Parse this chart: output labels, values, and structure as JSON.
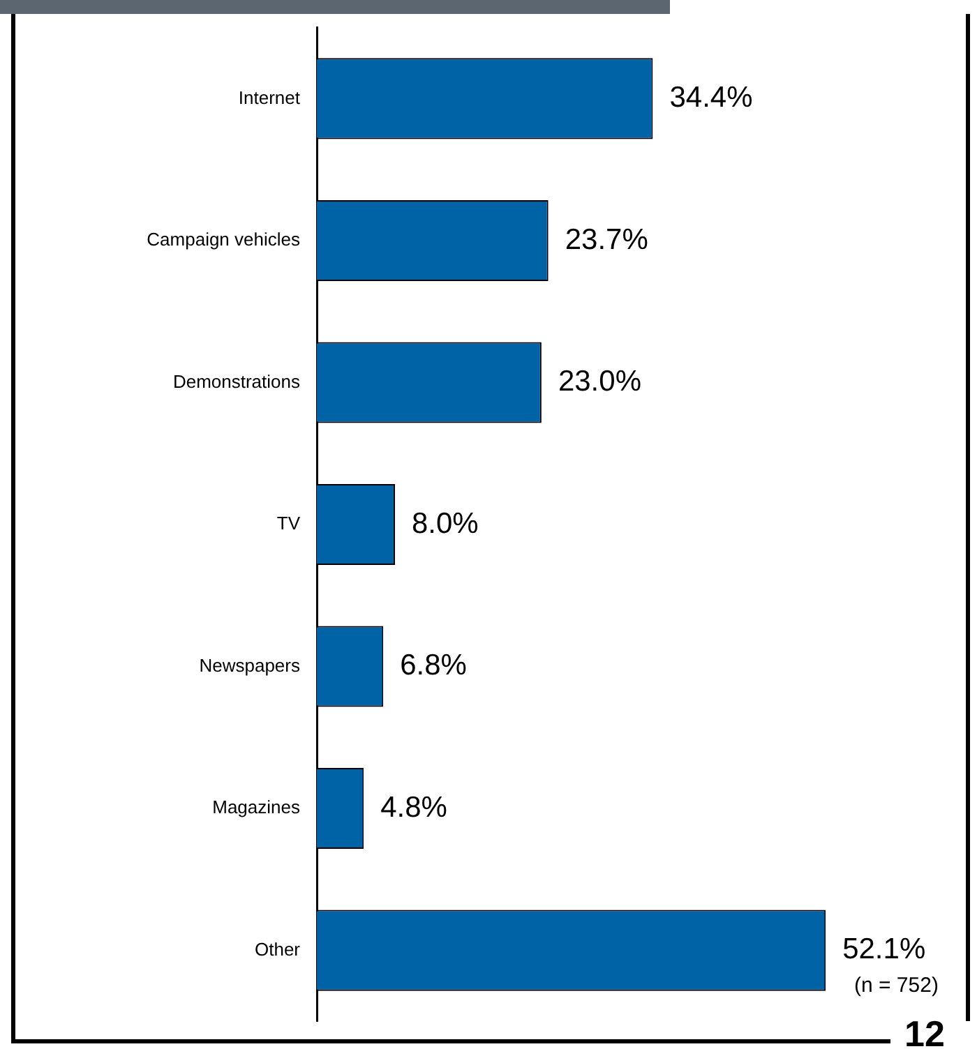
{
  "chart_data": {
    "type": "bar",
    "orientation": "horizontal",
    "categories": [
      "Internet",
      "Campaign vehicles",
      "Demonstrations",
      "TV",
      "Newspapers",
      "Magazines",
      "Other"
    ],
    "values": [
      34.4,
      23.7,
      23.0,
      8.0,
      6.8,
      4.8,
      52.1
    ],
    "value_labels": [
      "34.4%",
      "23.7%",
      "23.0%",
      "8.0%",
      "6.8%",
      "4.8%",
      "52.1%"
    ],
    "color": "#0063a6",
    "legend": false,
    "annotations": [
      "(n = 752)",
      "12"
    ]
  }
}
